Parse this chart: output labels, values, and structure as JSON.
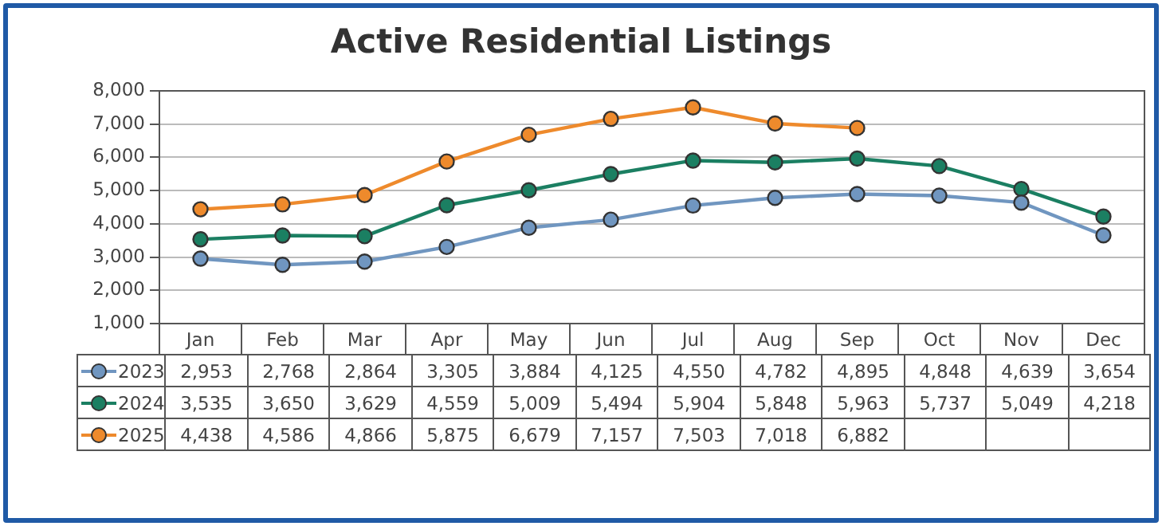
{
  "chart_data": {
    "type": "line",
    "title": "Active Residential Listings",
    "categories": [
      "Jan",
      "Feb",
      "Mar",
      "Apr",
      "May",
      "Jun",
      "Jul",
      "Aug",
      "Sep",
      "Oct",
      "Nov",
      "Dec"
    ],
    "series": [
      {
        "name": "2023",
        "color": "#7096c0",
        "values": [
          2953,
          2768,
          2864,
          3305,
          3884,
          4125,
          4550,
          4782,
          4895,
          4848,
          4639,
          3654
        ],
        "value_labels": [
          "2,953",
          "2,768",
          "2,864",
          "3,305",
          "3,884",
          "4,125",
          "4,550",
          "4,782",
          "4,895",
          "4,848",
          "4,639",
          "3,654"
        ]
      },
      {
        "name": "2024",
        "color": "#1b7f62",
        "values": [
          3535,
          3650,
          3629,
          4559,
          5009,
          5494,
          5904,
          5848,
          5963,
          5737,
          5049,
          4218
        ],
        "value_labels": [
          "3,535",
          "3,650",
          "3,629",
          "4,559",
          "5,009",
          "5,494",
          "5,904",
          "5,848",
          "5,963",
          "5,737",
          "5,049",
          "4,218"
        ]
      },
      {
        "name": "2025",
        "color": "#ee8a2c",
        "values": [
          4438,
          4586,
          4866,
          5875,
          6679,
          7157,
          7503,
          7018,
          6882,
          null,
          null,
          null
        ],
        "value_labels": [
          "4,438",
          "4,586",
          "4,866",
          "5,875",
          "6,679",
          "7,157",
          "7,503",
          "7,018",
          "6,882",
          null,
          null,
          null
        ]
      }
    ],
    "ylim": [
      1000,
      8000
    ],
    "yticks": [
      {
        "value": 1000,
        "label": "1,000"
      },
      {
        "value": 2000,
        "label": "2,000"
      },
      {
        "value": 3000,
        "label": "3,000"
      },
      {
        "value": 4000,
        "label": "4,000"
      },
      {
        "value": 5000,
        "label": "5,000"
      },
      {
        "value": 6000,
        "label": "6,000"
      },
      {
        "value": 7000,
        "label": "7,000"
      },
      {
        "value": 8000,
        "label": "8,000"
      }
    ],
    "grid": "y",
    "legend": "bottom",
    "marker": "circle",
    "line_style": "solid"
  }
}
